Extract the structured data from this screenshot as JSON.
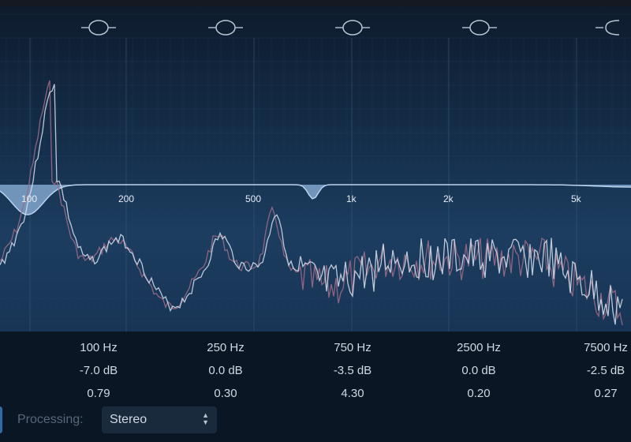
{
  "freq_axis_labels": [
    "100",
    "200",
    "500",
    "1k",
    "2k",
    "5k"
  ],
  "bands": [
    {
      "freq": "100 Hz",
      "gain": "-7.0 dB",
      "q": "0.79"
    },
    {
      "freq": "250 Hz",
      "gain": "0.0 dB",
      "q": "0.30"
    },
    {
      "freq": "750 Hz",
      "gain": "-3.5 dB",
      "q": "4.30"
    },
    {
      "freq": "2500 Hz",
      "gain": "0.0 dB",
      "q": "0.20"
    },
    {
      "freq": "7500 Hz",
      "gain": "-2.5 dB",
      "q": "0.27"
    }
  ],
  "processing": {
    "label": "Processing:",
    "value": "Stereo"
  },
  "colors": {
    "eq_curve": "#8fb4dc",
    "spectrum_left": "#d8e2ee",
    "spectrum_right": "#9a6a86"
  }
}
